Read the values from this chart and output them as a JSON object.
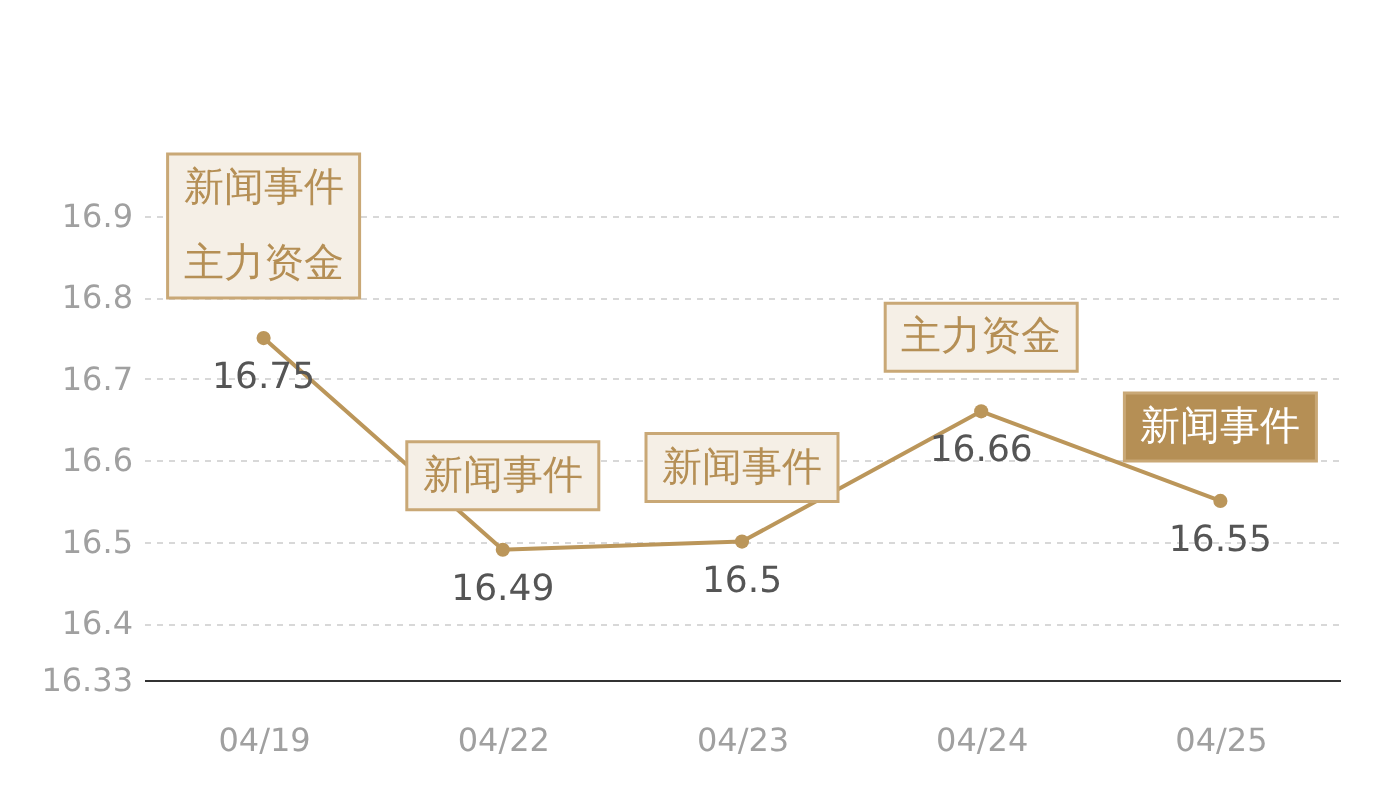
{
  "chart_data": {
    "type": "line",
    "categories": [
      "04/19",
      "04/22",
      "04/23",
      "04/24",
      "04/25"
    ],
    "series": [
      {
        "color": "#bb965a",
        "values": [
          16.75,
          16.49,
          16.5,
          16.66,
          16.55
        ]
      }
    ],
    "ylim": [
      16.33,
      16.9
    ],
    "yticks": [
      16.33,
      16.4,
      16.5,
      16.6,
      16.7,
      16.8,
      16.9
    ],
    "grid": "y",
    "marker": "circle",
    "data_labels": true,
    "annotations": [
      "新闻事件",
      {
        "text": "主力资金",
        "x": "04/19",
        "y": 16.75
      },
      {
        "text": "新闻事件",
        "x": "04/22",
        "y": 16.49
      },
      {
        "text": "新闻事件",
        "x": "04/23",
        "y": 16.5
      },
      {
        "text": "主力资金",
        "x": "04/24",
        "y": 16.66
      },
      {
        "text": "新闻事件",
        "x": "04/25",
        "y": 16.55
      }
    ]
  }
}
